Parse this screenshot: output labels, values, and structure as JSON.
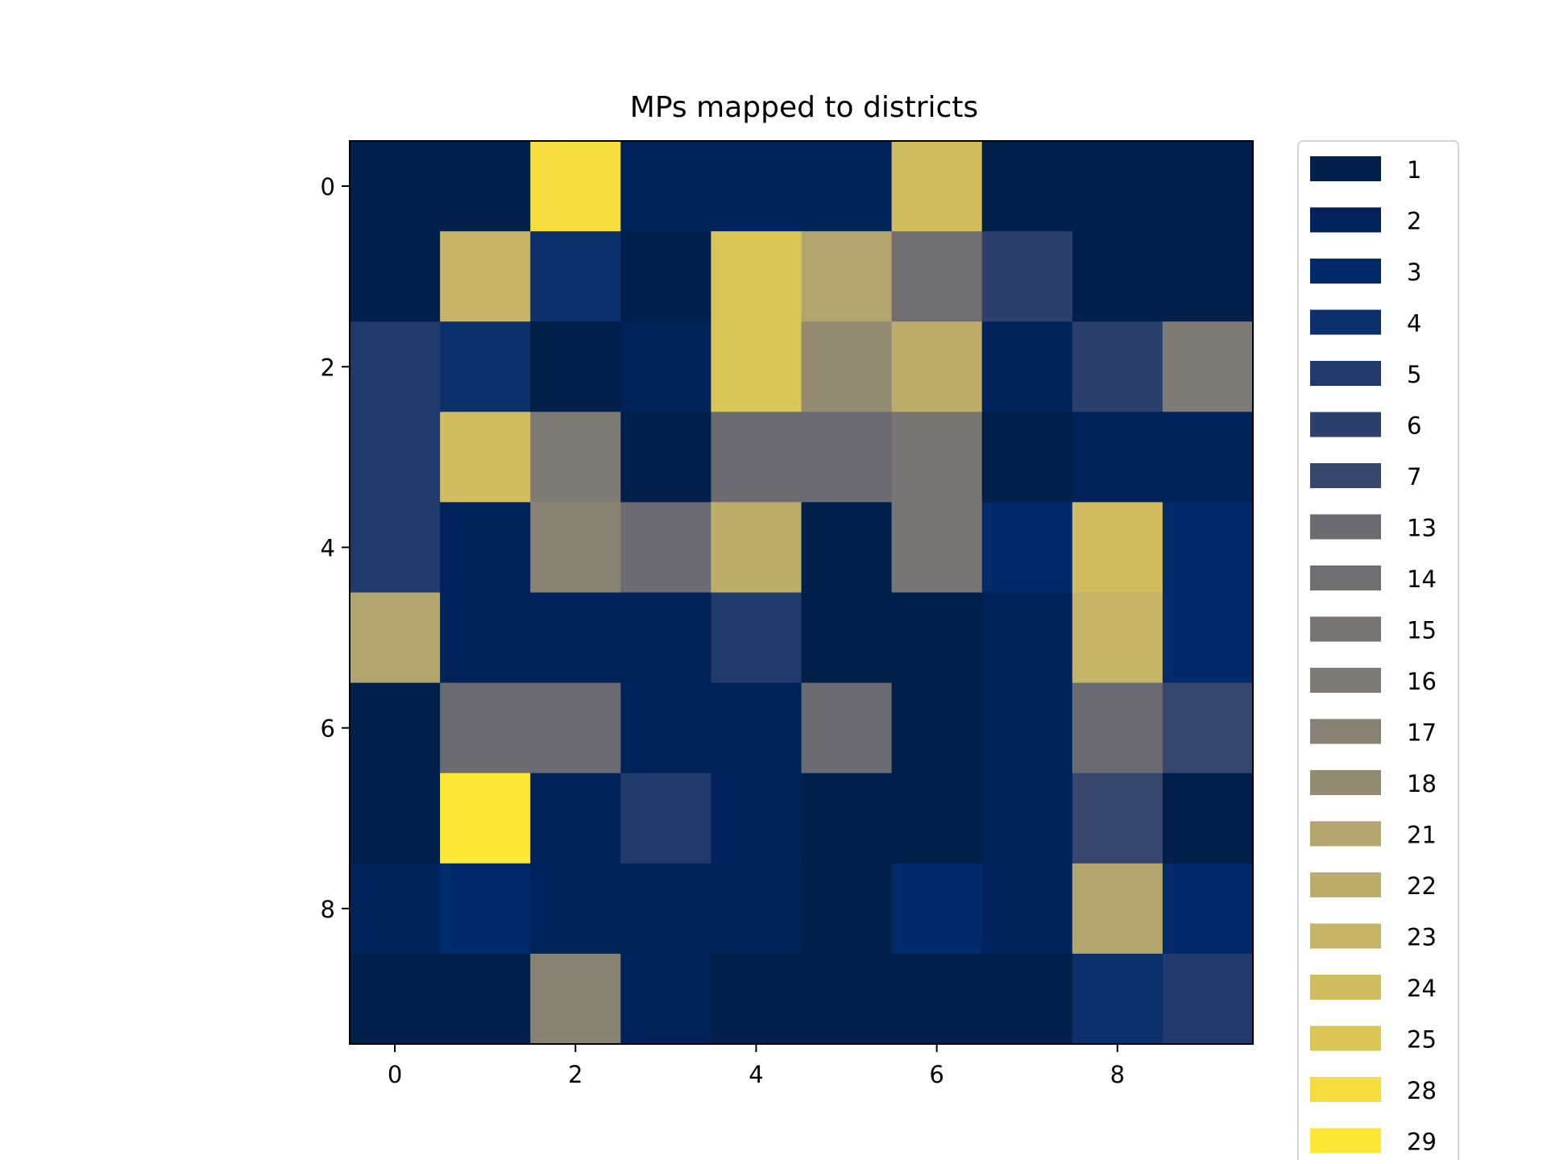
{
  "chart_data": {
    "type": "heatmap",
    "title": "MPs mapped to districts",
    "xlabel": "",
    "ylabel": "",
    "x_ticks": [
      0,
      2,
      4,
      6,
      8
    ],
    "y_ticks": [
      0,
      2,
      4,
      6,
      8
    ],
    "xlim": [
      -0.5,
      9.5
    ],
    "ylim": [
      9.5,
      -0.5
    ],
    "grid": false,
    "legend_placement": "outside-right",
    "legend": [
      {
        "label": "1",
        "color": "#00204c"
      },
      {
        "label": "2",
        "color": "#00225a"
      },
      {
        "label": "3",
        "color": "#002a6a"
      },
      {
        "label": "4",
        "color": "#0c306c"
      },
      {
        "label": "5",
        "color": "#213a6d"
      },
      {
        "label": "6",
        "color": "#2d3f6c"
      },
      {
        "label": "7",
        "color": "#37466c"
      },
      {
        "label": "13",
        "color": "#6b6b71"
      },
      {
        "label": "14",
        "color": "#6f6f72"
      },
      {
        "label": "15",
        "color": "#767573"
      },
      {
        "label": "16",
        "color": "#7e7b76"
      },
      {
        "label": "17",
        "color": "#878274"
      },
      {
        "label": "18",
        "color": "#928b72"
      },
      {
        "label": "21",
        "color": "#b2a56e"
      },
      {
        "label": "22",
        "color": "#bcad6a"
      },
      {
        "label": "23",
        "color": "#c6b466"
      },
      {
        "label": "24",
        "color": "#d1bc5f"
      },
      {
        "label": "25",
        "color": "#dac557"
      },
      {
        "label": "28",
        "color": "#f6dc3e"
      },
      {
        "label": "29",
        "color": "#fde737"
      }
    ],
    "values": [
      [
        1,
        1,
        28,
        2,
        2,
        2,
        24,
        1,
        1,
        1
      ],
      [
        1,
        23,
        4,
        1,
        25,
        21,
        14,
        6,
        1,
        1
      ],
      [
        5,
        4,
        1,
        2,
        25,
        18,
        22,
        2,
        6,
        16
      ],
      [
        5,
        24,
        16,
        1,
        13,
        13,
        15,
        1,
        2,
        2
      ],
      [
        5,
        2,
        17,
        13,
        22,
        1,
        15,
        3,
        24,
        3
      ],
      [
        21,
        2,
        2,
        2,
        5,
        1,
        1,
        2,
        23,
        3
      ],
      [
        1,
        13,
        13,
        2,
        2,
        13,
        1,
        2,
        13,
        7
      ],
      [
        1,
        29,
        2,
        5,
        2,
        1,
        1,
        2,
        7,
        1
      ],
      [
        2,
        3,
        2,
        2,
        2,
        1,
        3,
        2,
        21,
        3
      ],
      [
        1,
        1,
        17,
        2,
        1,
        1,
        1,
        1,
        4,
        5
      ]
    ]
  }
}
